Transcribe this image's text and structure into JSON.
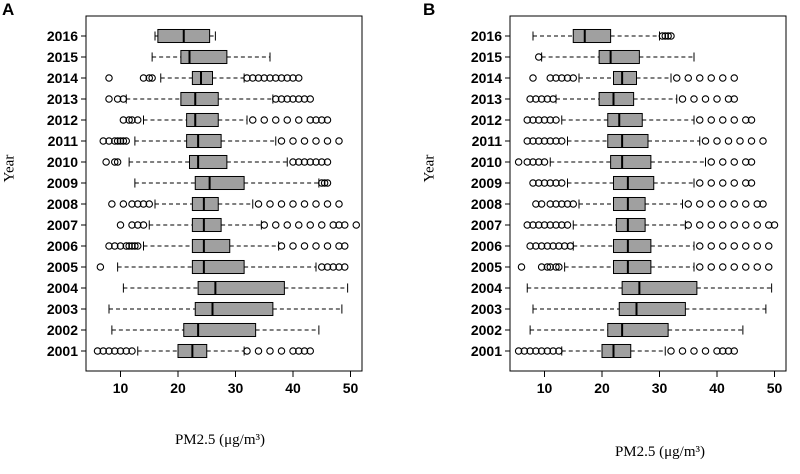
{
  "figure": {
    "panels": [
      "A",
      "B"
    ]
  },
  "chart_data": [
    {
      "panel": "A",
      "type": "boxplot",
      "orientation": "horizontal",
      "xlabel": "PM2.5 (μg/m³)",
      "ylabel": "Year",
      "xlim": [
        4,
        52
      ],
      "xticks": [
        10,
        20,
        30,
        40,
        50
      ],
      "categories": [
        "2016",
        "2015",
        "2014",
        "2013",
        "2012",
        "2011",
        "2010",
        "2009",
        "2008",
        "2007",
        "2006",
        "2005",
        "2004",
        "2003",
        "2002",
        "2001"
      ],
      "boxes": [
        {
          "year": "2016",
          "whisker_low": 16,
          "q1": 16.5,
          "median": 21,
          "q3": 25.5,
          "whisker_high": 26.5,
          "outliers": []
        },
        {
          "year": "2015",
          "whisker_low": 15.5,
          "q1": 20.5,
          "median": 22,
          "q3": 28.5,
          "whisker_high": 36,
          "outliers": []
        },
        {
          "year": "2014",
          "whisker_low": 17,
          "q1": 22.5,
          "median": 24,
          "q3": 26,
          "whisker_high": 31.5,
          "outliers": [
            8,
            14,
            15,
            15.5,
            32,
            33,
            34,
            35,
            36,
            37,
            38,
            39,
            40,
            41
          ]
        },
        {
          "year": "2013",
          "whisker_low": 11,
          "q1": 20.5,
          "median": 23,
          "q3": 27,
          "whisker_high": 36.5,
          "outliers": [
            8,
            9.5,
            10.5,
            37,
            38,
            39,
            40,
            41,
            42,
            43
          ]
        },
        {
          "year": "2012",
          "whisker_low": 14,
          "q1": 21.5,
          "median": 23,
          "q3": 27,
          "whisker_high": 32,
          "outliers": [
            10.5,
            11.5,
            12,
            13,
            33,
            35,
            37,
            39,
            41,
            43,
            44,
            45,
            46
          ]
        },
        {
          "year": "2011",
          "whisker_low": 12.5,
          "q1": 21.5,
          "median": 23.5,
          "q3": 27.5,
          "whisker_high": 37,
          "outliers": [
            7,
            8,
            9,
            9.5,
            10,
            10.5,
            11,
            38,
            40,
            42,
            44,
            46,
            48
          ]
        },
        {
          "year": "2010",
          "whisker_low": 11.5,
          "q1": 22,
          "median": 23.5,
          "q3": 28.5,
          "whisker_high": 39,
          "outliers": [
            7.5,
            9,
            9.5,
            40,
            41,
            42,
            43,
            44,
            45,
            46
          ]
        },
        {
          "year": "2009",
          "whisker_low": 12.5,
          "q1": 23,
          "median": 25.5,
          "q3": 31.5,
          "whisker_high": 44.5,
          "outliers": [
            45,
            45.5,
            46
          ]
        },
        {
          "year": "2008",
          "whisker_low": 16,
          "q1": 22.5,
          "median": 24.5,
          "q3": 27,
          "whisker_high": 33,
          "outliers": [
            8.5,
            10.5,
            12,
            13,
            14,
            15,
            34,
            36,
            38,
            40,
            42,
            44,
            46,
            48
          ]
        },
        {
          "year": "2007",
          "whisker_low": 15,
          "q1": 22.5,
          "median": 24.5,
          "q3": 27.5,
          "whisker_high": 34.5,
          "outliers": [
            10,
            12,
            13,
            14,
            35,
            37,
            39,
            41,
            43,
            45,
            47,
            48,
            49,
            51
          ]
        },
        {
          "year": "2006",
          "whisker_low": 14,
          "q1": 22.5,
          "median": 24.5,
          "q3": 29,
          "whisker_high": 37.5,
          "outliers": [
            8,
            9,
            10,
            11,
            11.5,
            12,
            12.5,
            13,
            38,
            40,
            42,
            44,
            46,
            48,
            49
          ]
        },
        {
          "year": "2005",
          "whisker_low": 9.5,
          "q1": 22.5,
          "median": 24.5,
          "q3": 31.5,
          "whisker_high": 44,
          "outliers": [
            6.5,
            45,
            46,
            47,
            48,
            49
          ]
        },
        {
          "year": "2004",
          "whisker_low": 10.5,
          "q1": 23.5,
          "median": 26.5,
          "q3": 38.5,
          "whisker_high": 49.5,
          "outliers": []
        },
        {
          "year": "2003",
          "whisker_low": 8,
          "q1": 23,
          "median": 26,
          "q3": 36.5,
          "whisker_high": 48.5,
          "outliers": []
        },
        {
          "year": "2002",
          "whisker_low": 8.5,
          "q1": 21,
          "median": 23.5,
          "q3": 33.5,
          "whisker_high": 44.5,
          "outliers": []
        },
        {
          "year": "2001",
          "whisker_low": 13,
          "q1": 20,
          "median": 22.5,
          "q3": 25,
          "whisker_high": 31.5,
          "outliers": [
            6,
            7,
            8,
            9,
            10,
            11,
            12,
            32,
            34,
            36,
            38,
            40,
            41,
            42,
            43
          ]
        }
      ]
    },
    {
      "panel": "B",
      "type": "boxplot",
      "orientation": "horizontal",
      "xlabel": "PM2.5 (μg/m³)",
      "ylabel": "Year",
      "xlim": [
        4,
        52
      ],
      "xticks": [
        10,
        20,
        30,
        40,
        50
      ],
      "categories": [
        "2016",
        "2015",
        "2014",
        "2013",
        "2012",
        "2011",
        "2010",
        "2009",
        "2008",
        "2007",
        "2006",
        "2005",
        "2004",
        "2003",
        "2002",
        "2001"
      ],
      "boxes": [
        {
          "year": "2016",
          "whisker_low": 8,
          "q1": 15,
          "median": 17,
          "q3": 21.5,
          "whisker_high": 30,
          "outliers": [
            30.5,
            31,
            31.5,
            32
          ]
        },
        {
          "year": "2015",
          "whisker_low": 9.5,
          "q1": 19.5,
          "median": 21.5,
          "q3": 26.5,
          "whisker_high": 36,
          "outliers": [
            9
          ]
        },
        {
          "year": "2014",
          "whisker_low": 16,
          "q1": 22,
          "median": 23.5,
          "q3": 26,
          "whisker_high": 32,
          "outliers": [
            8,
            11,
            12,
            13,
            14,
            15,
            33,
            35,
            37,
            39,
            41,
            43
          ]
        },
        {
          "year": "2013",
          "whisker_low": 12,
          "q1": 19.5,
          "median": 22,
          "q3": 25.5,
          "whisker_high": 33,
          "outliers": [
            7.5,
            8.5,
            9.5,
            10.5,
            11.5,
            34,
            36,
            38,
            40,
            42,
            43
          ]
        },
        {
          "year": "2012",
          "whisker_low": 13,
          "q1": 21,
          "median": 23,
          "q3": 27,
          "whisker_high": 36,
          "outliers": [
            7,
            8,
            9,
            10,
            11,
            12,
            37,
            39,
            41,
            43,
            45,
            46
          ]
        },
        {
          "year": "2011",
          "whisker_low": 14,
          "q1": 21,
          "median": 23.5,
          "q3": 28,
          "whisker_high": 37,
          "outliers": [
            7,
            8,
            9,
            10,
            11,
            12,
            13,
            38,
            40,
            42,
            44,
            46,
            48
          ]
        },
        {
          "year": "2010",
          "whisker_low": 11,
          "q1": 21.5,
          "median": 23.5,
          "q3": 28.5,
          "whisker_high": 38,
          "outliers": [
            5.5,
            7,
            8,
            9,
            10,
            39,
            41,
            43,
            45,
            46
          ]
        },
        {
          "year": "2009",
          "whisker_low": 14,
          "q1": 22,
          "median": 24.5,
          "q3": 29,
          "whisker_high": 36,
          "outliers": [
            8,
            9,
            10,
            11,
            12,
            13,
            37,
            39,
            41,
            43,
            45,
            46
          ]
        },
        {
          "year": "2008",
          "whisker_low": 16,
          "q1": 22,
          "median": 24.5,
          "q3": 27.5,
          "whisker_high": 34,
          "outliers": [
            8.5,
            9.5,
            11,
            12,
            13,
            14,
            15,
            35,
            37,
            39,
            41,
            43,
            45,
            47,
            48
          ]
        },
        {
          "year": "2007",
          "whisker_low": 15,
          "q1": 22.5,
          "median": 24.5,
          "q3": 27.5,
          "whisker_high": 34.5,
          "outliers": [
            7,
            8,
            9,
            10,
            11,
            12,
            13,
            14,
            35,
            37,
            39,
            41,
            43,
            45,
            47,
            49,
            50
          ]
        },
        {
          "year": "2006",
          "whisker_low": 15,
          "q1": 22,
          "median": 24.5,
          "q3": 28.5,
          "whisker_high": 36,
          "outliers": [
            7.5,
            8.5,
            9.5,
            10.5,
            11.5,
            12.5,
            13.5,
            14.5,
            37,
            39,
            41,
            43,
            45,
            47,
            49
          ]
        },
        {
          "year": "2005",
          "whisker_low": 13.5,
          "q1": 22,
          "median": 24.5,
          "q3": 28.5,
          "whisker_high": 36,
          "outliers": [
            6,
            9.5,
            10.5,
            11,
            12,
            12.5,
            37,
            39,
            41,
            43,
            45,
            47,
            49
          ]
        },
        {
          "year": "2004",
          "whisker_low": 7,
          "q1": 23.5,
          "median": 26.5,
          "q3": 36.5,
          "whisker_high": 49.5,
          "outliers": []
        },
        {
          "year": "2003",
          "whisker_low": 8,
          "q1": 23,
          "median": 26,
          "q3": 34.5,
          "whisker_high": 48.5,
          "outliers": []
        },
        {
          "year": "2002",
          "whisker_low": 7.5,
          "q1": 21,
          "median": 23.5,
          "q3": 31.5,
          "whisker_high": 44.5,
          "outliers": []
        },
        {
          "year": "2001",
          "whisker_low": 13,
          "q1": 20,
          "median": 22,
          "q3": 25,
          "whisker_high": 31,
          "outliers": [
            5.5,
            6.5,
            7.5,
            8.5,
            9.5,
            10.5,
            11.5,
            12.5,
            32,
            34,
            36,
            38,
            40,
            41,
            42,
            43
          ]
        }
      ]
    }
  ]
}
